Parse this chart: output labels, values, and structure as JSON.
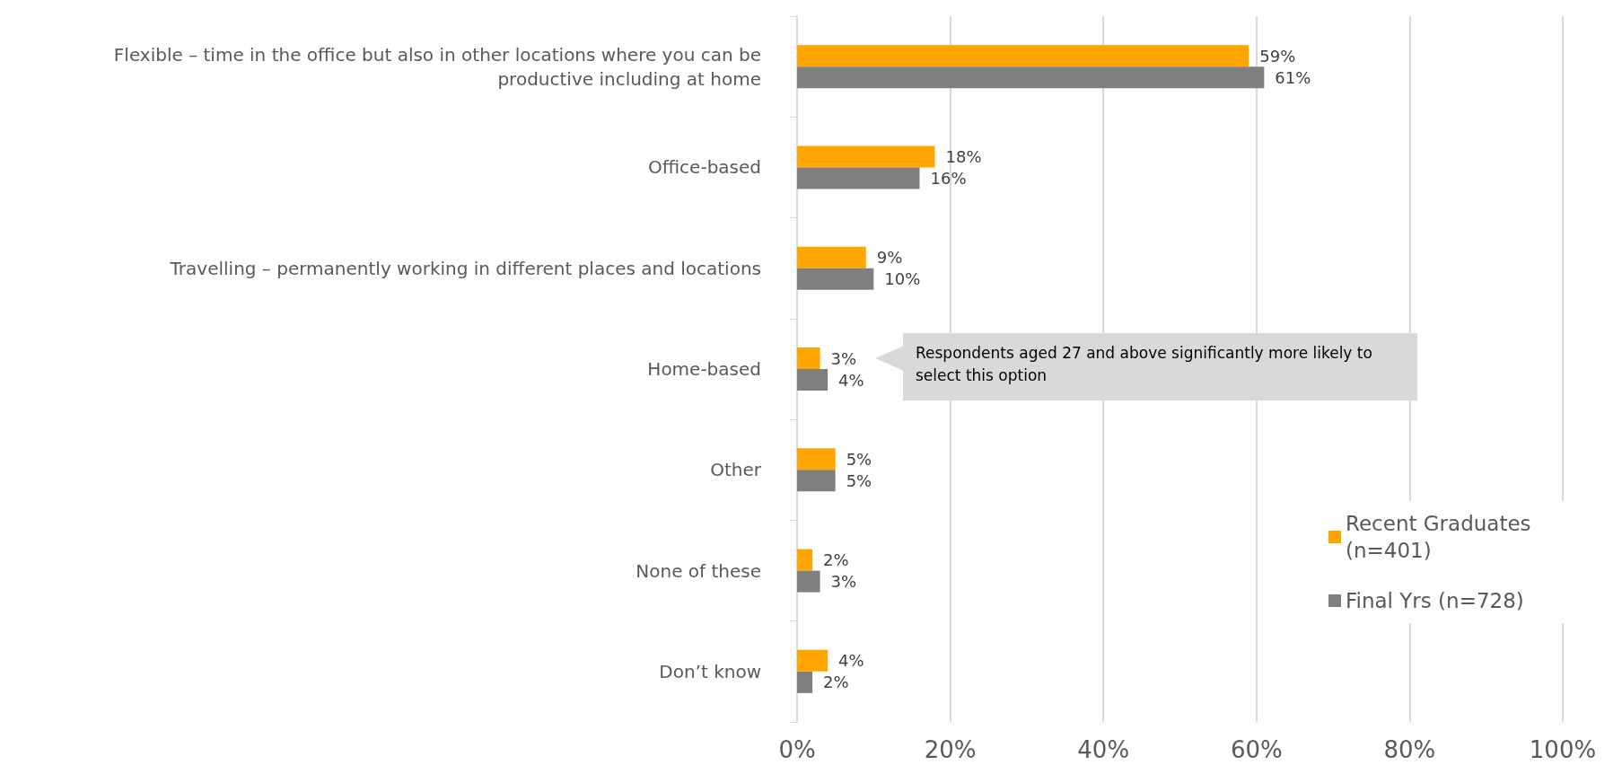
{
  "chart_data": {
    "type": "bar",
    "orientation": "horizontal",
    "categories": [
      "Flexible – time in the office but also in other locations where you can be productive including at home",
      "Office-based",
      "Travelling – permanently working in different places and locations",
      "Home-based",
      "Other",
      "None of these",
      "Don’t know"
    ],
    "series": [
      {
        "name": "Recent Graduates (n=401)",
        "color": "#ffa500",
        "values": [
          59,
          18,
          9,
          3,
          5,
          2,
          4
        ],
        "value_labels": [
          "59%",
          "18%",
          "9%",
          "3%",
          "5%",
          "2%",
          "4%"
        ]
      },
      {
        "name": "Final Yrs (n=728)",
        "color": "#7f7f7f",
        "values": [
          61,
          16,
          10,
          4,
          5,
          3,
          2
        ],
        "value_labels": [
          "61%",
          "16%",
          "10%",
          "4%",
          "5%",
          "3%",
          "2%"
        ]
      }
    ],
    "xlim": [
      0,
      100
    ],
    "xticks": [
      {
        "value": 0,
        "label": "0%"
      },
      {
        "value": 20,
        "label": "20%"
      },
      {
        "value": 40,
        "label": "40%"
      },
      {
        "value": 60,
        "label": "60%"
      },
      {
        "value": 80,
        "label": "80%"
      },
      {
        "value": 100,
        "label": "100%"
      }
    ],
    "grid": "x",
    "legend": "bottom right",
    "annotations": [
      "Respondents aged 27 and above significantly more likely to select this option"
    ]
  }
}
